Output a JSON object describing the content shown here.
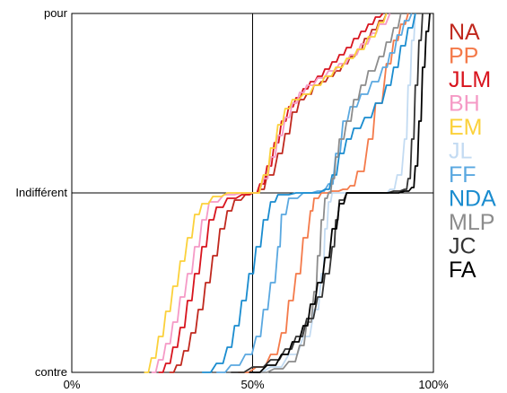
{
  "chart_data": {
    "type": "line",
    "title": "",
    "xlabel": "",
    "ylabel": "",
    "x_ticks": [
      "0%",
      "50%",
      "100%"
    ],
    "y_ticks": [
      "contre",
      "Indifférent",
      "pour"
    ],
    "xlim": [
      0,
      100
    ],
    "ylim": [
      -1,
      1
    ],
    "grid": "center cross lines at 50% and Indifférent",
    "legend_position": "right",
    "series": [
      {
        "name": "NA",
        "color": "#c0281e",
        "points": [
          [
            27,
            -1
          ],
          [
            29,
            -0.96
          ],
          [
            31,
            -0.88
          ],
          [
            33,
            -0.78
          ],
          [
            35,
            -0.65
          ],
          [
            37,
            -0.5
          ],
          [
            39,
            -0.35
          ],
          [
            41,
            -0.2
          ],
          [
            43,
            -0.1
          ],
          [
            45,
            -0.04
          ],
          [
            48,
            -0.01
          ],
          [
            50,
            0
          ],
          [
            52,
            0.02
          ],
          [
            54,
            0.1
          ],
          [
            57,
            0.22
          ],
          [
            59,
            0.33
          ],
          [
            61,
            0.45
          ],
          [
            63,
            0.52
          ],
          [
            65,
            0.55
          ],
          [
            67,
            0.6
          ],
          [
            69,
            0.62
          ],
          [
            71,
            0.65
          ],
          [
            73,
            0.68
          ],
          [
            75,
            0.72
          ],
          [
            77,
            0.76
          ],
          [
            79,
            0.8
          ],
          [
            81,
            0.86
          ],
          [
            83,
            0.91
          ],
          [
            85,
            0.96
          ],
          [
            87,
            1
          ]
        ]
      },
      {
        "name": "PP",
        "color": "#f47a4a",
        "points": [
          [
            46,
            -1
          ],
          [
            51,
            -0.97
          ],
          [
            55,
            -0.9
          ],
          [
            58,
            -0.78
          ],
          [
            60,
            -0.6
          ],
          [
            62,
            -0.45
          ],
          [
            64,
            -0.25
          ],
          [
            66,
            -0.1
          ],
          [
            67,
            -0.03
          ],
          [
            69,
            0
          ],
          [
            72,
            0.01
          ],
          [
            75,
            0.02
          ],
          [
            77,
            0.04
          ],
          [
            79,
            0.12
          ],
          [
            82,
            0.3
          ],
          [
            84,
            0.5
          ],
          [
            87,
            0.72
          ],
          [
            89,
            0.85
          ],
          [
            91,
            0.94
          ],
          [
            93,
            1
          ]
        ]
      },
      {
        "name": "JLM",
        "color": "#d8141e",
        "points": [
          [
            24,
            -1
          ],
          [
            26,
            -0.95
          ],
          [
            28,
            -0.86
          ],
          [
            30,
            -0.75
          ],
          [
            32,
            -0.6
          ],
          [
            34,
            -0.45
          ],
          [
            36,
            -0.3
          ],
          [
            38,
            -0.15
          ],
          [
            40,
            -0.08
          ],
          [
            43,
            -0.03
          ],
          [
            47,
            -0.01
          ],
          [
            50,
            0
          ],
          [
            52,
            0.05
          ],
          [
            54,
            0.15
          ],
          [
            56,
            0.28
          ],
          [
            58,
            0.4
          ],
          [
            60,
            0.48
          ],
          [
            62,
            0.53
          ],
          [
            64,
            0.58
          ],
          [
            66,
            0.62
          ],
          [
            68,
            0.65
          ],
          [
            70,
            0.69
          ],
          [
            72,
            0.73
          ],
          [
            74,
            0.77
          ],
          [
            76,
            0.81
          ],
          [
            78,
            0.86
          ],
          [
            80,
            0.9
          ],
          [
            82,
            0.94
          ],
          [
            84,
            0.98
          ],
          [
            86,
            1
          ]
        ]
      },
      {
        "name": "BH",
        "color": "#f59ac6",
        "points": [
          [
            22,
            -1
          ],
          [
            24,
            -0.93
          ],
          [
            26,
            -0.84
          ],
          [
            28,
            -0.72
          ],
          [
            30,
            -0.58
          ],
          [
            32,
            -0.45
          ],
          [
            34,
            -0.3
          ],
          [
            36,
            -0.15
          ],
          [
            38,
            -0.05
          ],
          [
            42,
            -0.01
          ],
          [
            47,
            0
          ],
          [
            50,
            0
          ],
          [
            53,
            0.08
          ],
          [
            55,
            0.2
          ],
          [
            57,
            0.32
          ],
          [
            59,
            0.42
          ],
          [
            61,
            0.5
          ],
          [
            63,
            0.56
          ],
          [
            65,
            0.6
          ],
          [
            68,
            0.64
          ],
          [
            71,
            0.68
          ],
          [
            74,
            0.72
          ],
          [
            77,
            0.77
          ],
          [
            80,
            0.83
          ],
          [
            83,
            0.89
          ],
          [
            85,
            0.94
          ],
          [
            88,
            1
          ]
        ]
      },
      {
        "name": "EM",
        "color": "#fbd13b",
        "points": [
          [
            20,
            -1
          ],
          [
            22,
            -0.92
          ],
          [
            24,
            -0.8
          ],
          [
            26,
            -0.66
          ],
          [
            28,
            -0.52
          ],
          [
            30,
            -0.38
          ],
          [
            32,
            -0.25
          ],
          [
            34,
            -0.12
          ],
          [
            36,
            -0.06
          ],
          [
            39,
            -0.02
          ],
          [
            43,
            0
          ],
          [
            47,
            0
          ],
          [
            50,
            0
          ],
          [
            53,
            0.1
          ],
          [
            55,
            0.25
          ],
          [
            57,
            0.38
          ],
          [
            59,
            0.47
          ],
          [
            61,
            0.52
          ],
          [
            64,
            0.55
          ],
          [
            67,
            0.6
          ],
          [
            70,
            0.65
          ],
          [
            73,
            0.7
          ],
          [
            76,
            0.75
          ],
          [
            79,
            0.8
          ],
          [
            82,
            0.87
          ],
          [
            85,
            0.95
          ],
          [
            87,
            1
          ]
        ]
      },
      {
        "name": "JL",
        "color": "#c3dbf2",
        "points": [
          [
            49,
            -1
          ],
          [
            55,
            -0.97
          ],
          [
            60,
            -0.9
          ],
          [
            64,
            -0.8
          ],
          [
            67,
            -0.65
          ],
          [
            69,
            -0.45
          ],
          [
            70,
            -0.2
          ],
          [
            71,
            -0.05
          ],
          [
            72,
            0
          ],
          [
            77,
            0
          ],
          [
            82,
            0
          ],
          [
            86,
            0
          ],
          [
            88,
            0.02
          ],
          [
            90,
            0.1
          ],
          [
            92,
            0.3
          ],
          [
            93,
            0.6
          ],
          [
            94,
            0.85
          ],
          [
            95,
            1
          ]
        ]
      },
      {
        "name": "FF",
        "color": "#5aa8e0",
        "points": [
          [
            40,
            -1
          ],
          [
            44,
            -0.96
          ],
          [
            48,
            -0.9
          ],
          [
            51,
            -0.8
          ],
          [
            53,
            -0.65
          ],
          [
            55,
            -0.5
          ],
          [
            57,
            -0.3
          ],
          [
            58,
            -0.12
          ],
          [
            60,
            -0.03
          ],
          [
            64,
            0
          ],
          [
            68,
            0.01
          ],
          [
            71,
            0.05
          ],
          [
            73,
            0.22
          ],
          [
            75,
            0.4
          ],
          [
            77,
            0.48
          ],
          [
            80,
            0.55
          ],
          [
            83,
            0.62
          ],
          [
            86,
            0.7
          ],
          [
            88,
            0.78
          ],
          [
            90,
            0.88
          ],
          [
            92,
            0.96
          ],
          [
            94,
            1
          ]
        ]
      },
      {
        "name": "NDA",
        "color": "#1a8ccf",
        "points": [
          [
            36,
            -1
          ],
          [
            40,
            -0.95
          ],
          [
            43,
            -0.86
          ],
          [
            45,
            -0.74
          ],
          [
            47,
            -0.6
          ],
          [
            49,
            -0.45
          ],
          [
            51,
            -0.3
          ],
          [
            53,
            -0.15
          ],
          [
            55,
            -0.05
          ],
          [
            57,
            -0.01
          ],
          [
            62,
            0
          ],
          [
            66,
            0
          ],
          [
            70,
            0.02
          ],
          [
            72,
            0.1
          ],
          [
            74,
            0.22
          ],
          [
            76,
            0.3
          ],
          [
            78,
            0.36
          ],
          [
            81,
            0.42
          ],
          [
            84,
            0.5
          ],
          [
            87,
            0.6
          ],
          [
            89,
            0.7
          ],
          [
            91,
            0.82
          ],
          [
            93,
            0.92
          ],
          [
            95,
            1
          ]
        ]
      },
      {
        "name": "MLP",
        "color": "#8c8c8c",
        "points": [
          [
            51,
            -1
          ],
          [
            56,
            -0.98
          ],
          [
            60,
            -0.94
          ],
          [
            63,
            -0.85
          ],
          [
            65,
            -0.72
          ],
          [
            67,
            -0.55
          ],
          [
            68,
            -0.35
          ],
          [
            69,
            -0.15
          ],
          [
            70,
            -0.03
          ],
          [
            71,
            0
          ],
          [
            72,
            0.08
          ],
          [
            73,
            0.2
          ],
          [
            74,
            0.3
          ],
          [
            76,
            0.4
          ],
          [
            78,
            0.52
          ],
          [
            80,
            0.6
          ],
          [
            82,
            0.68
          ],
          [
            85,
            0.76
          ],
          [
            87,
            0.84
          ],
          [
            89,
            0.92
          ],
          [
            91,
            1
          ]
        ]
      },
      {
        "name": "JC",
        "color": "#333333",
        "points": [
          [
            44,
            -1
          ],
          [
            50,
            -0.97
          ],
          [
            55,
            -0.93
          ],
          [
            59,
            -0.87
          ],
          [
            62,
            -0.8
          ],
          [
            65,
            -0.7
          ],
          [
            68,
            -0.58
          ],
          [
            70,
            -0.45
          ],
          [
            72,
            -0.3
          ],
          [
            73,
            -0.15
          ],
          [
            74,
            -0.04
          ],
          [
            76,
            0
          ],
          [
            80,
            0
          ],
          [
            85,
            0
          ],
          [
            89,
            0.01
          ],
          [
            92,
            0.02
          ],
          [
            93,
            0.08
          ],
          [
            94,
            0.3
          ],
          [
            95,
            0.6
          ],
          [
            96,
            0.85
          ],
          [
            97,
            1
          ]
        ]
      },
      {
        "name": "FA",
        "color": "#000000",
        "points": [
          [
            49,
            -1
          ],
          [
            54,
            -0.96
          ],
          [
            58,
            -0.9
          ],
          [
            61,
            -0.83
          ],
          [
            64,
            -0.74
          ],
          [
            66,
            -0.62
          ],
          [
            68,
            -0.5
          ],
          [
            70,
            -0.36
          ],
          [
            72,
            -0.2
          ],
          [
            74,
            -0.06
          ],
          [
            76,
            0
          ],
          [
            82,
            0
          ],
          [
            88,
            0
          ],
          [
            92,
            0.01
          ],
          [
            94,
            0.03
          ],
          [
            95,
            0.15
          ],
          [
            96,
            0.4
          ],
          [
            97,
            0.7
          ],
          [
            98,
            0.9
          ],
          [
            99,
            1
          ]
        ]
      }
    ]
  }
}
